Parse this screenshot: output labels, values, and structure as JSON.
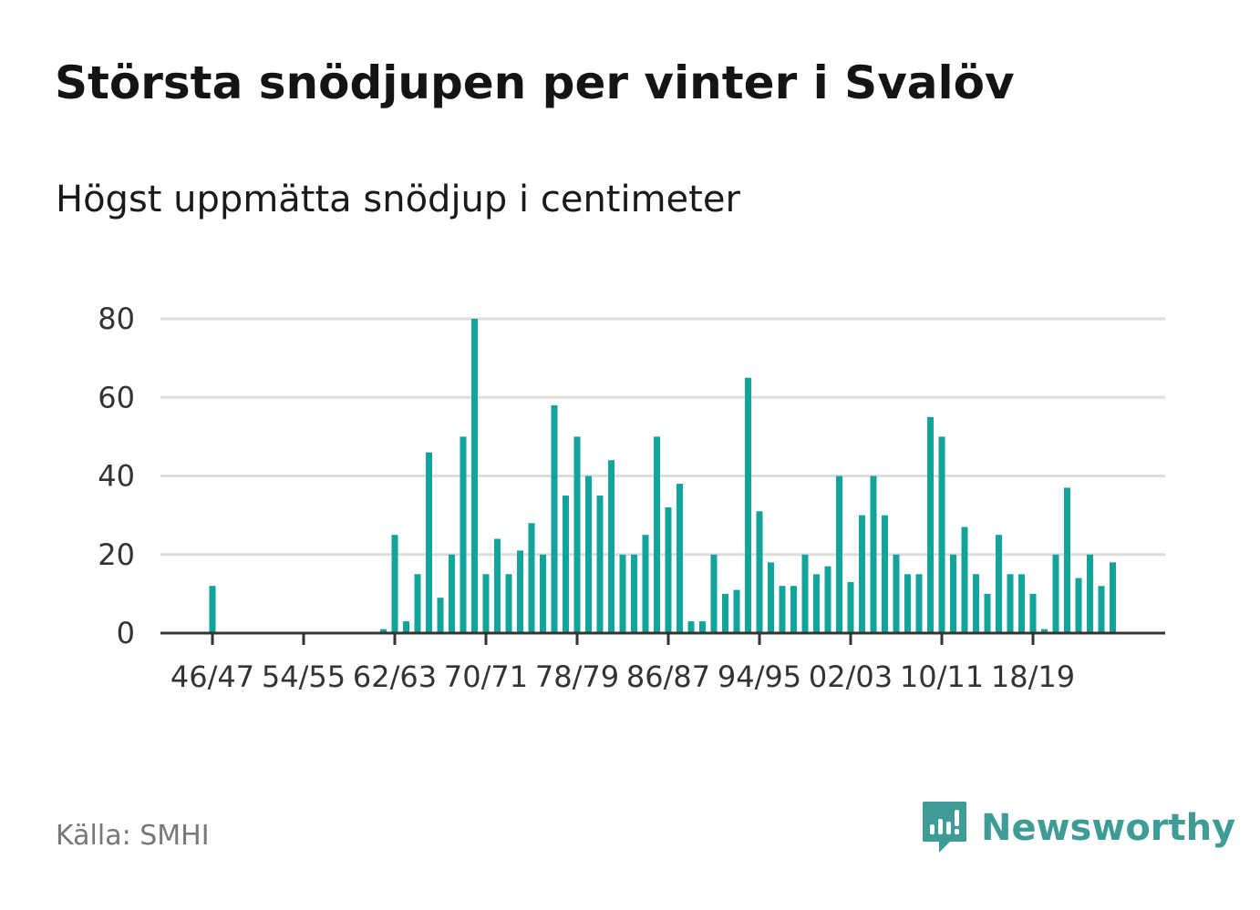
{
  "title": "Största snödjupen per vinter i Svalöv",
  "subtitle": "Högst uppmätta snödjup i centimeter",
  "source": "Källa: SMHI",
  "brand": {
    "name": "Newsworthy",
    "logo_icon": "newsworthy-chart-bubble-icon"
  },
  "colors": {
    "bar": "#12a39b",
    "grid": "#dddddd",
    "baseline": "#333333",
    "brand": "#3f9b95"
  },
  "chart_data": {
    "type": "bar",
    "first_season_start_year": 1946,
    "x_tick_labels": [
      "46/47",
      "54/55",
      "62/63",
      "70/71",
      "78/79",
      "86/87",
      "94/95",
      "02/03",
      "10/11",
      "18/19"
    ],
    "x_tick_every": 8,
    "values": [
      12,
      0,
      0,
      0,
      0,
      0,
      0,
      0,
      0,
      0,
      0,
      0,
      0,
      0,
      0,
      1,
      25,
      3,
      15,
      46,
      9,
      20,
      50,
      80,
      15,
      24,
      15,
      21,
      28,
      20,
      58,
      35,
      50,
      40,
      35,
      44,
      20,
      20,
      25,
      50,
      32,
      38,
      3,
      3,
      20,
      10,
      11,
      65,
      31,
      18,
      12,
      12,
      20,
      15,
      17,
      40,
      13,
      30,
      40,
      30,
      20,
      15,
      15,
      55,
      50,
      20,
      27,
      15,
      10,
      25,
      15,
      15,
      10,
      1,
      20,
      37,
      14,
      20,
      12,
      18
    ],
    "y_ticks": [
      0,
      20,
      40,
      60,
      80
    ],
    "ylim": [
      0,
      80
    ],
    "grid": true,
    "legend": "none"
  }
}
